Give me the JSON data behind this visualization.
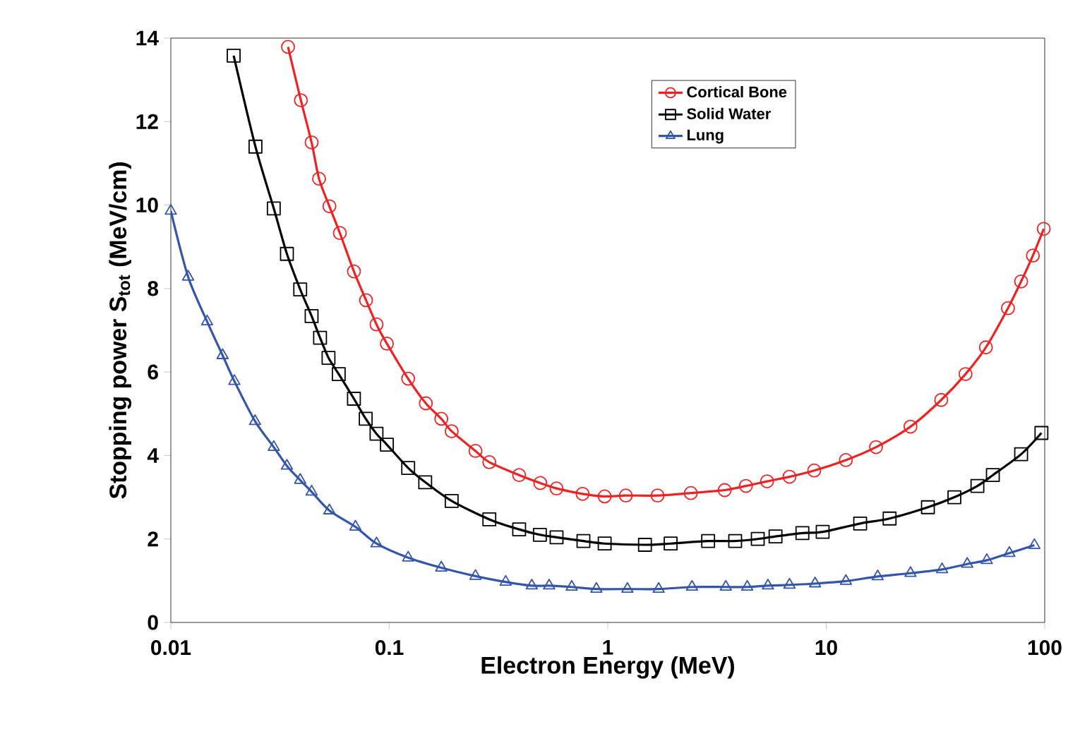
{
  "chart_data": {
    "type": "line",
    "xlabel": "Electron Energy (MeV)",
    "ylabel": "Stopping power S$_{tot}$ (MeV/cm)",
    "log": "x",
    "xlim": [
      0.01,
      100
    ],
    "xticks": [
      0.01,
      0.1,
      1,
      10,
      100
    ],
    "ylim": [
      0,
      14
    ],
    "yticks": [
      0,
      2,
      4,
      6,
      8,
      10,
      12,
      14
    ],
    "legend": "top right",
    "series": [
      {
        "name": "Cortical Bone",
        "color": "#ee2222",
        "marker": "circle",
        "x": [
          0.0344,
          0.0394,
          0.0441,
          0.0477,
          0.0532,
          0.0594,
          0.0689,
          0.0783,
          0.0874,
          0.0975,
          0.122,
          0.147,
          0.173,
          0.193,
          0.248,
          0.287,
          0.393,
          0.491,
          0.583,
          0.767,
          0.968,
          1.21,
          1.69,
          2.4,
          3.43,
          4.29,
          5.36,
          6.79,
          8.81,
          12.3,
          16.9,
          24.3,
          33.6,
          43.4,
          53.8,
          67.9,
          78.0,
          88.3,
          99.0
        ],
        "values": [
          13.79,
          12.51,
          11.5,
          10.63,
          9.97,
          9.33,
          8.41,
          7.72,
          7.14,
          6.68,
          5.84,
          5.25,
          4.88,
          4.58,
          4.11,
          3.84,
          3.53,
          3.34,
          3.21,
          3.08,
          3.02,
          3.04,
          3.04,
          3.1,
          3.17,
          3.27,
          3.38,
          3.49,
          3.64,
          3.89,
          4.2,
          4.69,
          5.33,
          5.95,
          6.59,
          7.53,
          8.17,
          8.79,
          9.43
        ]
      },
      {
        "name": "Solid Water",
        "color": "#000000",
        "marker": "square",
        "x": [
          0.0194,
          0.0244,
          0.0296,
          0.034,
          0.0391,
          0.0441,
          0.0482,
          0.0527,
          0.0587,
          0.0689,
          0.078,
          0.0874,
          0.0975,
          0.122,
          0.146,
          0.193,
          0.287,
          0.393,
          0.489,
          0.583,
          0.774,
          0.968,
          1.48,
          1.94,
          2.88,
          3.83,
          4.86,
          5.86,
          7.78,
          9.63,
          14.3,
          19.5,
          29.2,
          38.6,
          49.2,
          57.9,
          78.0,
          96.6
        ],
        "values": [
          13.58,
          11.4,
          9.92,
          8.83,
          7.98,
          7.34,
          6.82,
          6.34,
          5.95,
          5.36,
          4.88,
          4.52,
          4.26,
          3.7,
          3.36,
          2.91,
          2.47,
          2.23,
          2.1,
          2.04,
          1.95,
          1.89,
          1.86,
          1.89,
          1.95,
          1.95,
          2.0,
          2.06,
          2.14,
          2.17,
          2.37,
          2.49,
          2.76,
          3.0,
          3.27,
          3.53,
          4.03,
          4.54
        ]
      },
      {
        "name": "Lung",
        "color": "#3355aa",
        "marker": "triangle",
        "x": [
          0.01,
          0.012,
          0.01466,
          0.01726,
          0.01954,
          0.0243,
          0.0296,
          0.034,
          0.0391,
          0.0441,
          0.0532,
          0.07,
          0.0874,
          0.122,
          0.173,
          0.248,
          0.341,
          0.449,
          0.539,
          0.684,
          0.887,
          1.23,
          1.71,
          2.43,
          3.47,
          4.35,
          5.41,
          6.79,
          8.89,
          12.3,
          17.2,
          24.3,
          33.9,
          44.2,
          54.3,
          68.9,
          89.7
        ],
        "values": [
          9.86,
          8.28,
          7.21,
          6.4,
          5.78,
          4.82,
          4.2,
          3.75,
          3.41,
          3.13,
          2.68,
          2.29,
          1.89,
          1.55,
          1.31,
          1.11,
          0.97,
          0.88,
          0.88,
          0.85,
          0.8,
          0.8,
          0.8,
          0.85,
          0.85,
          0.85,
          0.88,
          0.9,
          0.93,
          0.99,
          1.1,
          1.18,
          1.27,
          1.4,
          1.49,
          1.66,
          1.85
        ]
      }
    ]
  }
}
